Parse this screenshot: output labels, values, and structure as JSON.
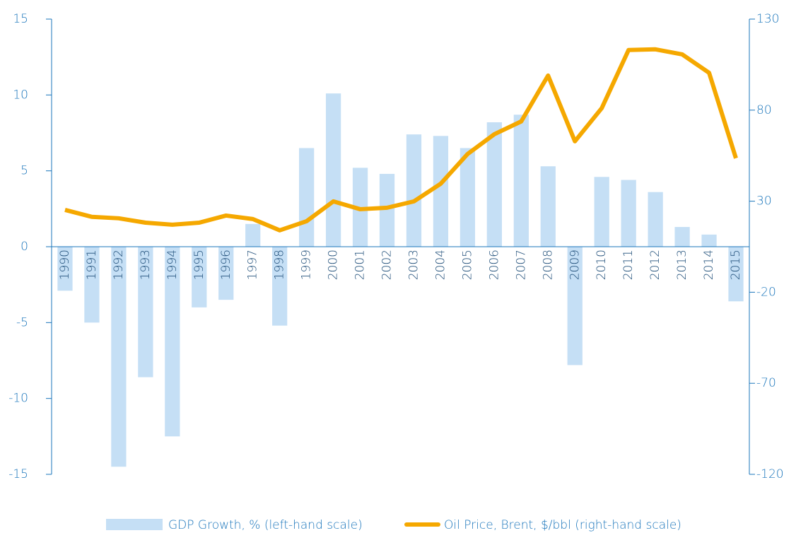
{
  "chart_data": {
    "type": "bar_line",
    "categories": [
      "1990",
      "1991",
      "1992",
      "1993",
      "1994",
      "1995",
      "1996",
      "1997",
      "1998",
      "1999",
      "2000",
      "2001",
      "2002",
      "2003",
      "2004",
      "2005",
      "2006",
      "2007",
      "2008",
      "2009",
      "2010",
      "2011",
      "2012",
      "2013",
      "2014",
      "2015"
    ],
    "series": [
      {
        "name": "GDP Growth, % (left-hand scale)",
        "color": "#c5dff5",
        "type": "bar",
        "values": [
          -2.9,
          -5.0,
          -14.5,
          -8.6,
          -12.5,
          -4.0,
          -3.5,
          1.5,
          -5.2,
          6.5,
          10.1,
          5.2,
          4.8,
          7.4,
          7.3,
          6.5,
          8.2,
          8.7,
          5.3,
          -7.8,
          4.6,
          4.4,
          3.6,
          1.3,
          0.8,
          -3.6
        ]
      },
      {
        "name": "Oil Price, Brent, $/bbl (right-hand scale)",
        "color": "#f5a800",
        "type": "line",
        "axis": "y2",
        "values": [
          25.2,
          21.4,
          20.6,
          18.2,
          17.1,
          18.2,
          22.1,
          20.2,
          14.0,
          19.0,
          29.9,
          25.6,
          26.4,
          29.9,
          39.6,
          55.9,
          66.8,
          73.8,
          99.0,
          62.9,
          81.1,
          113.0,
          113.4,
          110.6,
          100.5,
          53.6
        ]
      }
    ],
    "ylim": [
      -15,
      15
    ],
    "yticks": [
      15,
      10,
      5,
      0,
      -5,
      -10,
      -15
    ],
    "y2lim": [
      -120,
      130
    ],
    "y2ticks": [
      130,
      80,
      30,
      -20,
      -70,
      -120
    ]
  }
}
